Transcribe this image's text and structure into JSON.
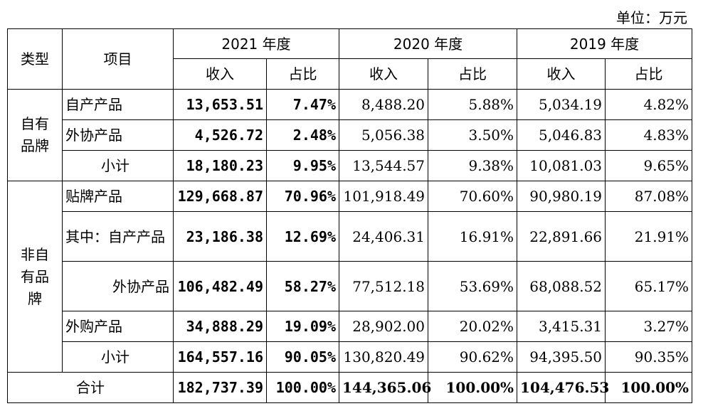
{
  "unit_label": "单位：万元",
  "headers": {
    "type": "类型",
    "item": "项目",
    "years": [
      "2021 年度",
      "2020 年度",
      "2019 年度"
    ],
    "revenue": "收入",
    "ratio": "占比"
  },
  "own_brand": {
    "label": "自有品牌",
    "rows": [
      {
        "item": "自产产品",
        "v": [
          "13,653.51",
          "7.47%",
          "8,488.20",
          "5.88%",
          "5,034.19",
          "4.82%"
        ]
      },
      {
        "item": "外协产品",
        "v": [
          "4,526.72",
          "2.48%",
          "5,056.38",
          "3.50%",
          "5,046.83",
          "4.83%"
        ]
      },
      {
        "item": "小计",
        "v": [
          "18,180.23",
          "9.95%",
          "13,544.57",
          "9.38%",
          "10,081.03",
          "9.65%"
        ]
      }
    ]
  },
  "non_own_brand": {
    "label": "非自有品牌",
    "rows": [
      {
        "item": "贴牌产品",
        "v": [
          "129,668.87",
          "70.96%",
          "101,918.49",
          "70.60%",
          "90,980.19",
          "87.08%"
        ]
      },
      {
        "item": "其中：自产产品",
        "v": [
          "23,186.38",
          "12.69%",
          "24,406.31",
          "16.91%",
          "22,891.66",
          "21.91%"
        ]
      },
      {
        "item": "外协产品",
        "v": [
          "106,482.49",
          "58.27%",
          "77,512.18",
          "53.69%",
          "68,088.52",
          "65.17%"
        ]
      },
      {
        "item": "外购产品",
        "v": [
          "34,888.29",
          "19.09%",
          "28,902.00",
          "20.02%",
          "3,415.31",
          "3.27%"
        ]
      },
      {
        "item": "小计",
        "v": [
          "164,557.16",
          "90.05%",
          "130,820.49",
          "90.62%",
          "94,395.50",
          "90.35%"
        ]
      }
    ]
  },
  "total": {
    "label": "合计",
    "v": [
      "182,737.39",
      "100.00%",
      "144,365.06",
      "100.00%",
      "104,476.53",
      "100.00%"
    ]
  }
}
